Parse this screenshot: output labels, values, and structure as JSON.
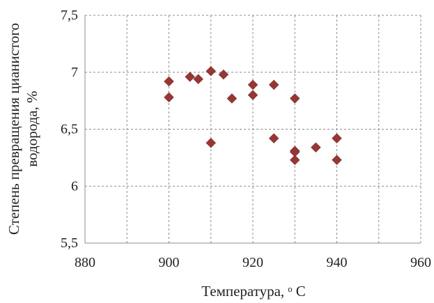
{
  "chart_data": {
    "type": "scatter",
    "xlabel": "Температура, ᵒ С",
    "ylabel_line1": "Степень превращения цианистого",
    "ylabel_line2": "водорода, %",
    "xlim": [
      880,
      960
    ],
    "ylim": [
      5.5,
      7.5
    ],
    "x_ticks": [
      880,
      900,
      920,
      940,
      960
    ],
    "x_minor_grid": [
      890,
      910,
      930,
      950
    ],
    "y_ticks": [
      "5,5",
      "6",
      "6,5",
      "7",
      "7,5"
    ],
    "y_tick_values": [
      5.5,
      6,
      6.5,
      7,
      7.5
    ],
    "grid": true,
    "marker": "diamond",
    "marker_color": "#953735",
    "points": [
      {
        "x": 900,
        "y": 6.92
      },
      {
        "x": 900,
        "y": 6.78
      },
      {
        "x": 905,
        "y": 6.96
      },
      {
        "x": 907,
        "y": 6.94
      },
      {
        "x": 910,
        "y": 7.01
      },
      {
        "x": 910,
        "y": 6.38
      },
      {
        "x": 913,
        "y": 6.98
      },
      {
        "x": 915,
        "y": 6.77
      },
      {
        "x": 920,
        "y": 6.89
      },
      {
        "x": 920,
        "y": 6.8
      },
      {
        "x": 925,
        "y": 6.89
      },
      {
        "x": 925,
        "y": 6.42
      },
      {
        "x": 930,
        "y": 6.77
      },
      {
        "x": 930,
        "y": 6.31
      },
      {
        "x": 930,
        "y": 6.3
      },
      {
        "x": 930,
        "y": 6.23
      },
      {
        "x": 935,
        "y": 6.34
      },
      {
        "x": 940,
        "y": 6.42
      },
      {
        "x": 940,
        "y": 6.23
      }
    ]
  }
}
